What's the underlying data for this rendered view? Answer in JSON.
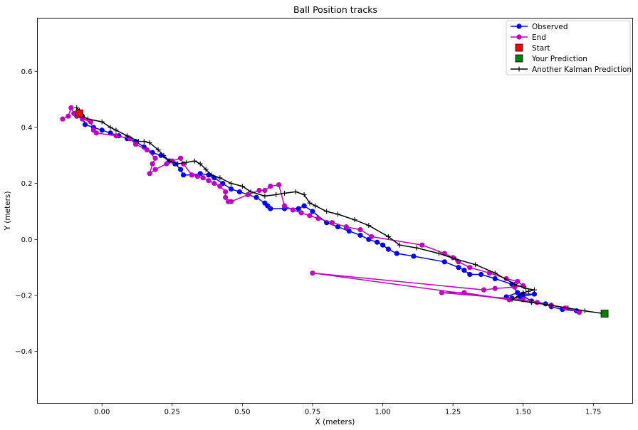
{
  "chart_data": {
    "type": "line",
    "title": "Ball Position tracks",
    "xlabel": "X (meters)",
    "ylabel": "Y (meters)",
    "xlim": [
      -0.23,
      1.89
    ],
    "ylim": [
      -0.585,
      0.79
    ],
    "xticks": [
      0.0,
      0.25,
      0.5,
      0.75,
      1.0,
      1.25,
      1.5,
      1.75
    ],
    "xtick_labels": [
      "0.00",
      "0.25",
      "0.50",
      "0.75",
      "1.00",
      "1.25",
      "1.50",
      "1.75"
    ],
    "yticks": [
      -0.4,
      -0.2,
      0.0,
      0.2,
      0.4,
      0.6
    ],
    "ytick_labels": [
      "−0.4",
      "−0.2",
      "0.0",
      "0.2",
      "0.4",
      "0.6"
    ],
    "grid": false,
    "legend_position": "top-right",
    "series": [
      {
        "name": "Observed",
        "color": "#0000ff",
        "marker": "circle",
        "points": [
          [
            -0.07,
            0.44
          ],
          [
            -0.06,
            0.41
          ],
          [
            -0.03,
            0.4
          ],
          [
            0.0,
            0.39
          ],
          [
            0.03,
            0.38
          ],
          [
            0.06,
            0.37
          ],
          [
            0.09,
            0.36
          ],
          [
            0.12,
            0.35
          ],
          [
            0.15,
            0.33
          ],
          [
            0.18,
            0.31
          ],
          [
            0.21,
            0.3
          ],
          [
            0.24,
            0.28
          ],
          [
            0.26,
            0.27
          ],
          [
            0.28,
            0.25
          ],
          [
            0.29,
            0.23
          ],
          [
            0.32,
            0.23
          ],
          [
            0.35,
            0.235
          ],
          [
            0.38,
            0.23
          ],
          [
            0.4,
            0.22
          ],
          [
            0.43,
            0.2
          ],
          [
            0.46,
            0.18
          ],
          [
            0.49,
            0.17
          ],
          [
            0.52,
            0.16
          ],
          [
            0.55,
            0.15
          ],
          [
            0.58,
            0.13
          ],
          [
            0.59,
            0.12
          ],
          [
            0.6,
            0.11
          ],
          [
            0.65,
            0.11
          ],
          [
            0.7,
            0.11
          ],
          [
            0.72,
            0.12
          ],
          [
            0.75,
            0.1
          ],
          [
            0.8,
            0.06
          ],
          [
            0.84,
            0.045
          ],
          [
            0.88,
            0.03
          ],
          [
            0.92,
            0.015
          ],
          [
            0.95,
            0.0
          ],
          [
            0.98,
            -0.01
          ],
          [
            1.0,
            -0.02
          ],
          [
            1.02,
            -0.035
          ],
          [
            1.05,
            -0.05
          ],
          [
            1.11,
            -0.06
          ],
          [
            1.22,
            -0.08
          ],
          [
            1.27,
            -0.1
          ],
          [
            1.29,
            -0.11
          ],
          [
            1.31,
            -0.125
          ],
          [
            1.35,
            -0.125
          ],
          [
            1.4,
            -0.14
          ],
          [
            1.46,
            -0.16
          ],
          [
            1.48,
            -0.19
          ],
          [
            1.5,
            -0.195
          ],
          [
            1.54,
            -0.195
          ],
          [
            1.49,
            -0.205
          ],
          [
            1.46,
            -0.21
          ],
          [
            1.44,
            -0.205
          ],
          [
            1.48,
            -0.19
          ],
          [
            1.53,
            -0.22
          ],
          [
            1.58,
            -0.23
          ],
          [
            1.6,
            -0.24
          ],
          [
            1.64,
            -0.25
          ],
          [
            1.69,
            -0.255
          ],
          [
            1.7,
            -0.26
          ]
        ]
      },
      {
        "name": "End",
        "color": "#bf00bf",
        "marker": "circle",
        "points": [
          [
            -0.14,
            0.43
          ],
          [
            -0.12,
            0.44
          ],
          [
            -0.11,
            0.47
          ],
          [
            -0.1,
            0.45
          ],
          [
            -0.09,
            0.44
          ],
          [
            -0.07,
            0.43
          ],
          [
            -0.04,
            0.42
          ],
          [
            -0.03,
            0.39
          ],
          [
            -0.02,
            0.38
          ],
          [
            0.05,
            0.37
          ],
          [
            0.1,
            0.36
          ],
          [
            0.12,
            0.34
          ],
          [
            0.16,
            0.32
          ],
          [
            0.19,
            0.29
          ],
          [
            0.18,
            0.27
          ],
          [
            0.17,
            0.235
          ],
          [
            0.19,
            0.25
          ],
          [
            0.23,
            0.27
          ],
          [
            0.25,
            0.28
          ],
          [
            0.28,
            0.29
          ],
          [
            0.29,
            0.27
          ],
          [
            0.32,
            0.23
          ],
          [
            0.34,
            0.225
          ],
          [
            0.36,
            0.22
          ],
          [
            0.38,
            0.21
          ],
          [
            0.4,
            0.2
          ],
          [
            0.42,
            0.19
          ],
          [
            0.44,
            0.17
          ],
          [
            0.44,
            0.15
          ],
          [
            0.45,
            0.135
          ],
          [
            0.46,
            0.135
          ],
          [
            0.52,
            0.16
          ],
          [
            0.56,
            0.175
          ],
          [
            0.58,
            0.175
          ],
          [
            0.6,
            0.19
          ],
          [
            0.63,
            0.195
          ],
          [
            0.65,
            0.12
          ],
          [
            0.68,
            0.105
          ],
          [
            0.71,
            0.095
          ],
          [
            0.74,
            0.085
          ],
          [
            0.77,
            0.075
          ],
          [
            0.82,
            0.06
          ],
          [
            0.87,
            0.045
          ],
          [
            0.92,
            0.035
          ],
          [
            0.96,
            0.01
          ],
          [
            1.14,
            -0.02
          ],
          [
            1.22,
            -0.05
          ],
          [
            1.25,
            -0.065
          ],
          [
            1.27,
            -0.08
          ],
          [
            1.31,
            -0.1
          ],
          [
            1.38,
            -0.12
          ],
          [
            1.44,
            -0.14
          ],
          [
            1.48,
            -0.15
          ],
          [
            1.5,
            -0.165
          ],
          [
            1.47,
            -0.17
          ],
          [
            1.4,
            -0.175
          ],
          [
            1.36,
            -0.18
          ],
          [
            0.75,
            -0.12
          ],
          [
            1.45,
            -0.215
          ],
          [
            1.29,
            -0.19
          ],
          [
            1.21,
            -0.19
          ],
          [
            1.5,
            -0.215
          ],
          [
            1.55,
            -0.225
          ],
          [
            1.6,
            -0.235
          ],
          [
            1.65,
            -0.245
          ],
          [
            1.7,
            -0.26
          ]
        ]
      },
      {
        "name": "Another Kalman Prediction",
        "color": "#000000",
        "marker": "plus",
        "points": [
          [
            -0.09,
            0.47
          ],
          [
            -0.08,
            0.46
          ],
          [
            -0.07,
            0.44
          ],
          [
            -0.05,
            0.43
          ],
          [
            0.0,
            0.42
          ],
          [
            0.03,
            0.4
          ],
          [
            0.05,
            0.39
          ],
          [
            0.09,
            0.37
          ],
          [
            0.13,
            0.35
          ],
          [
            0.15,
            0.35
          ],
          [
            0.17,
            0.345
          ],
          [
            0.2,
            0.32
          ],
          [
            0.22,
            0.3
          ],
          [
            0.24,
            0.28
          ],
          [
            0.27,
            0.27
          ],
          [
            0.3,
            0.275
          ],
          [
            0.33,
            0.28
          ],
          [
            0.35,
            0.27
          ],
          [
            0.37,
            0.25
          ],
          [
            0.39,
            0.23
          ],
          [
            0.42,
            0.22
          ],
          [
            0.46,
            0.2
          ],
          [
            0.5,
            0.19
          ],
          [
            0.53,
            0.17
          ],
          [
            0.58,
            0.155
          ],
          [
            0.62,
            0.16
          ],
          [
            0.65,
            0.165
          ],
          [
            0.69,
            0.17
          ],
          [
            0.72,
            0.16
          ],
          [
            0.74,
            0.13
          ],
          [
            0.76,
            0.12
          ],
          [
            0.8,
            0.1
          ],
          [
            0.84,
            0.09
          ],
          [
            0.9,
            0.07
          ],
          [
            0.95,
            0.05
          ],
          [
            1.02,
            0.01
          ],
          [
            1.06,
            -0.02
          ],
          [
            1.12,
            -0.03
          ],
          [
            1.2,
            -0.05
          ],
          [
            1.26,
            -0.07
          ],
          [
            1.33,
            -0.09
          ],
          [
            1.4,
            -0.12
          ],
          [
            1.47,
            -0.16
          ],
          [
            1.51,
            -0.175
          ],
          [
            1.54,
            -0.18
          ],
          [
            1.52,
            -0.185
          ],
          [
            1.5,
            -0.19
          ],
          [
            1.46,
            -0.215
          ],
          [
            1.53,
            -0.225
          ],
          [
            1.6,
            -0.235
          ],
          [
            1.66,
            -0.245
          ],
          [
            1.72,
            -0.255
          ],
          [
            1.79,
            -0.265
          ]
        ]
      },
      {
        "name": "Start",
        "color": "#ff0000",
        "marker": "square",
        "points": [
          [
            -0.08,
            0.45
          ]
        ]
      },
      {
        "name": "Your Prediction",
        "color": "#008000",
        "marker": "square",
        "points": [
          [
            1.79,
            -0.265
          ]
        ]
      }
    ],
    "legend_entries": [
      {
        "label": "Observed",
        "color": "#0000ff",
        "marker": "circle-line"
      },
      {
        "label": "End",
        "color": "#bf00bf",
        "marker": "circle-line"
      },
      {
        "label": "Start",
        "color": "#ff0000",
        "marker": "square"
      },
      {
        "label": "Your Prediction",
        "color": "#008000",
        "marker": "square"
      },
      {
        "label": "Another Kalman Prediction",
        "color": "#000000",
        "marker": "plus-line"
      }
    ]
  }
}
